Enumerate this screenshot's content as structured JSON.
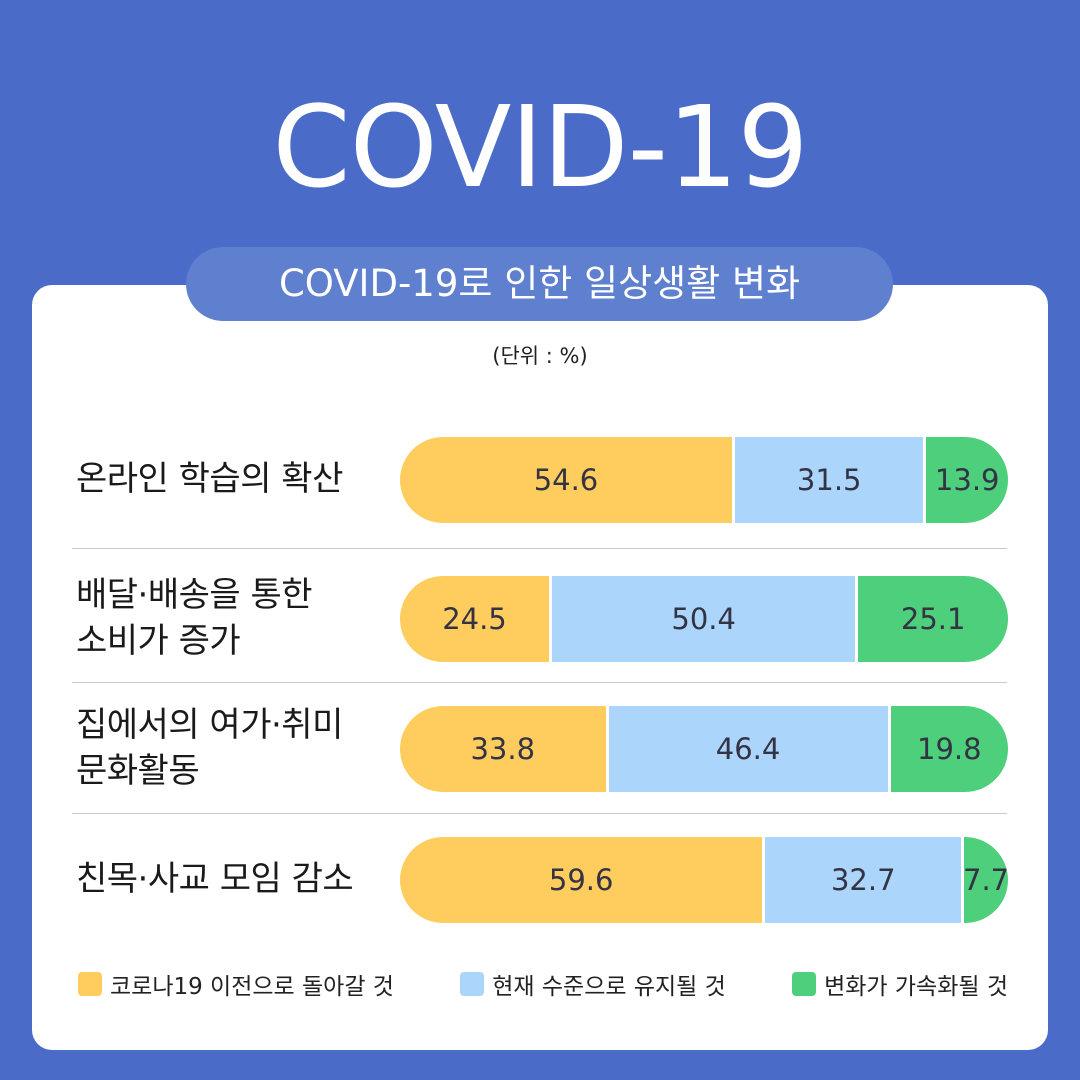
{
  "header": {
    "title": "COVID-19",
    "subtitle": "COVID-19로 인한 일상생활 변화",
    "unit": "(단위 : %)"
  },
  "colors": {
    "background": "#4a6cc8",
    "pill": "#5f7fcf",
    "series_1": "#ffcd5e",
    "series_2": "#acd5fb",
    "series_3": "#4dcf7b"
  },
  "chart_data": {
    "type": "bar",
    "orientation": "horizontal",
    "stacked": true,
    "percent": true,
    "categories": [
      "온라인 학습의 확산",
      "배달·배송을 통한\n소비가 증가",
      "집에서의 여가·취미\n문화활동",
      "친목·사교 모임 감소"
    ],
    "series": [
      {
        "name": "코로나19 이전으로 돌아갈 것",
        "values": [
          54.6,
          24.5,
          33.8,
          59.6
        ]
      },
      {
        "name": "현재 수준으로 유지될 것",
        "values": [
          31.5,
          50.4,
          46.4,
          32.7
        ]
      },
      {
        "name": "변화가 가속화될 것",
        "values": [
          13.9,
          25.1,
          19.8,
          7.7
        ]
      }
    ],
    "xlim": [
      0,
      100
    ],
    "title": "COVID-19로 인한 일상생활 변화",
    "unit": "(단위 : %)",
    "legend_position": "bottom"
  }
}
